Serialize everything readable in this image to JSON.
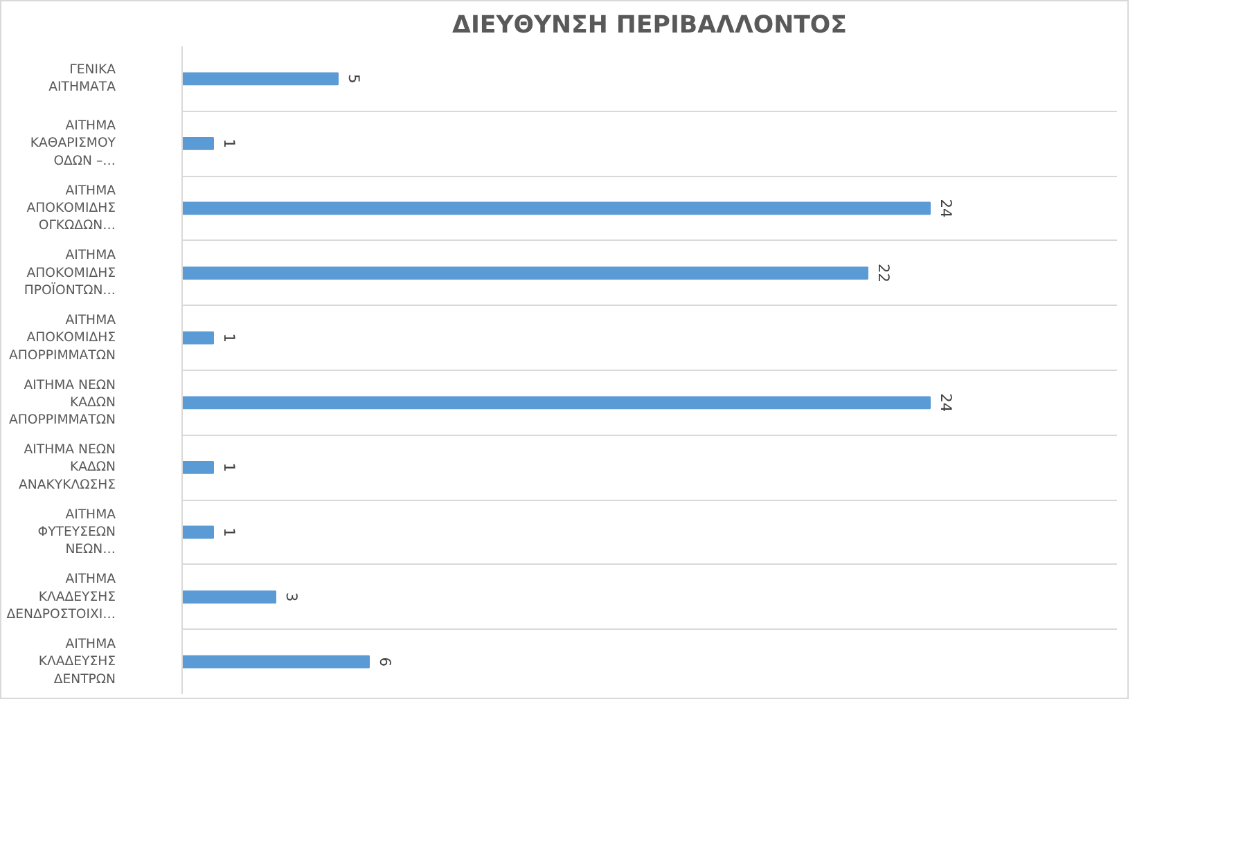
{
  "chart_data": {
    "type": "bar",
    "orientation": "horizontal",
    "title": "ΔΙΕΥΘΥΝΣΗ ΠΕΡΙΒΑΛΛΟΝΤΟΣ",
    "categories": [
      "ΓΕΝΙΚΑ\nΑΙΤΗΜΑΤΑ",
      "ΑΙΤΗΜΑ\nΚΑΘΑΡΙΣΜΟΥ\nΟΔΩΝ –…",
      "ΑΙΤΗΜΑ\nΑΠΟΚΟΜΙΔΗΣ\nΟΓΚΩΔΩΝ…",
      "ΑΙΤΗΜΑ\nΑΠΟΚΟΜΙΔΗΣ\nΠΡΟΪΟΝΤΩΝ…",
      "ΑΙΤΗΜΑ\nΑΠΟΚΟΜΙΔΗΣ\nΑΠΟΡΡΙΜΜΑΤΩΝ",
      "ΑΙΤΗΜΑ ΝΕΩΝ\nΚΑΔΩΝ\nΑΠΟΡΡΙΜΜΑΤΩΝ",
      "ΑΙΤΗΜΑ ΝΕΩΝ\nΚΑΔΩΝ\nΑΝΑΚΥΚΛΩΣΗΣ",
      "ΑΙΤΗΜΑ\nΦΥΤΕΥΣΕΩΝ\nΝΕΩΝ…",
      "ΑΙΤΗΜΑ\nΚΛΑΔΕΥΣΗΣ\nΔΕΝΔΡΟΣΤΟΙΧΙ…",
      "ΑΙΤΗΜΑ\nΚΛΑΔΕΥΣΗΣ\nΔΕΝΤΡΩΝ"
    ],
    "values": [
      5,
      1,
      24,
      22,
      1,
      24,
      1,
      1,
      3,
      6
    ],
    "color": "#5b9bd5",
    "xlim": [
      0,
      30
    ],
    "data_labels": true,
    "grid": "y",
    "tick_labels": "y"
  }
}
